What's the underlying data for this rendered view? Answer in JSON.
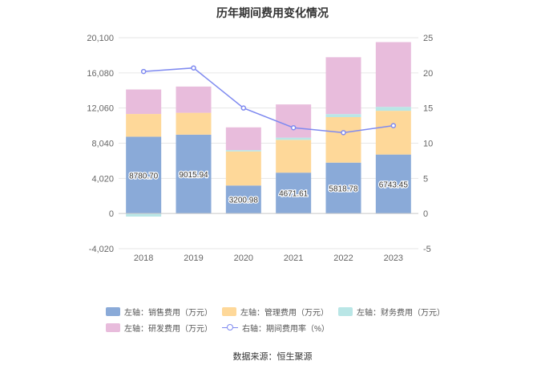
{
  "title": "历年期间费用变化情况",
  "source": "数据来源：恒生聚源",
  "legend": {
    "sales": "左轴：销售费用（万元）",
    "admin": "左轴：管理费用（万元）",
    "finance": "左轴：财务费用（万元）",
    "rnd": "左轴：研发费用（万元）",
    "rate": "右轴：期间费用率（%）"
  },
  "chart_data": {
    "type": "bar",
    "stacked": true,
    "categories": [
      "2018",
      "2019",
      "2020",
      "2021",
      "2022",
      "2023"
    ],
    "series": [
      {
        "name": "左轴：销售费用（万元）",
        "axis": "left",
        "color": "#8aaad8",
        "values": [
          8780.7,
          9015.94,
          3200.98,
          4671.61,
          5818.78,
          6743.45
        ],
        "labels": [
          "8780.70",
          "9015.94",
          "3200.98",
          "4671.61",
          "5818.78",
          "6743.45"
        ]
      },
      {
        "name": "左轴：管理费用（万元）",
        "axis": "left",
        "color": "#fed899",
        "values": [
          2600,
          2500,
          3900,
          3750,
          5200,
          5000
        ]
      },
      {
        "name": "左轴：财务费用（万元）",
        "axis": "left",
        "color": "#b9e6e6",
        "values": [
          -350,
          0,
          150,
          250,
          350,
          450
        ]
      },
      {
        "name": "左轴：研发费用（万元）",
        "axis": "left",
        "color": "#e8bcdc",
        "values": [
          2800,
          3000,
          2600,
          3800,
          6500,
          7400
        ]
      }
    ],
    "line": {
      "name": "右轴：期间费用率（%）",
      "axis": "right",
      "color": "#7f8af0",
      "values": [
        20.2,
        20.7,
        15.0,
        12.2,
        11.5,
        12.5
      ]
    },
    "left_axis": {
      "ticks": [
        "20,100",
        "16,080",
        "12,060",
        "8,040",
        "4,020",
        "0",
        "-4,020"
      ],
      "tick_values": [
        20100,
        16080,
        12060,
        8040,
        4020,
        0,
        -4020
      ],
      "ylim": [
        -4020,
        20100
      ]
    },
    "right_axis": {
      "ticks": [
        "25",
        "20",
        "15",
        "10",
        "5",
        "0",
        "-5"
      ],
      "tick_values": [
        25,
        20,
        15,
        10,
        5,
        0,
        -5
      ],
      "ylim": [
        -5,
        25
      ]
    }
  }
}
